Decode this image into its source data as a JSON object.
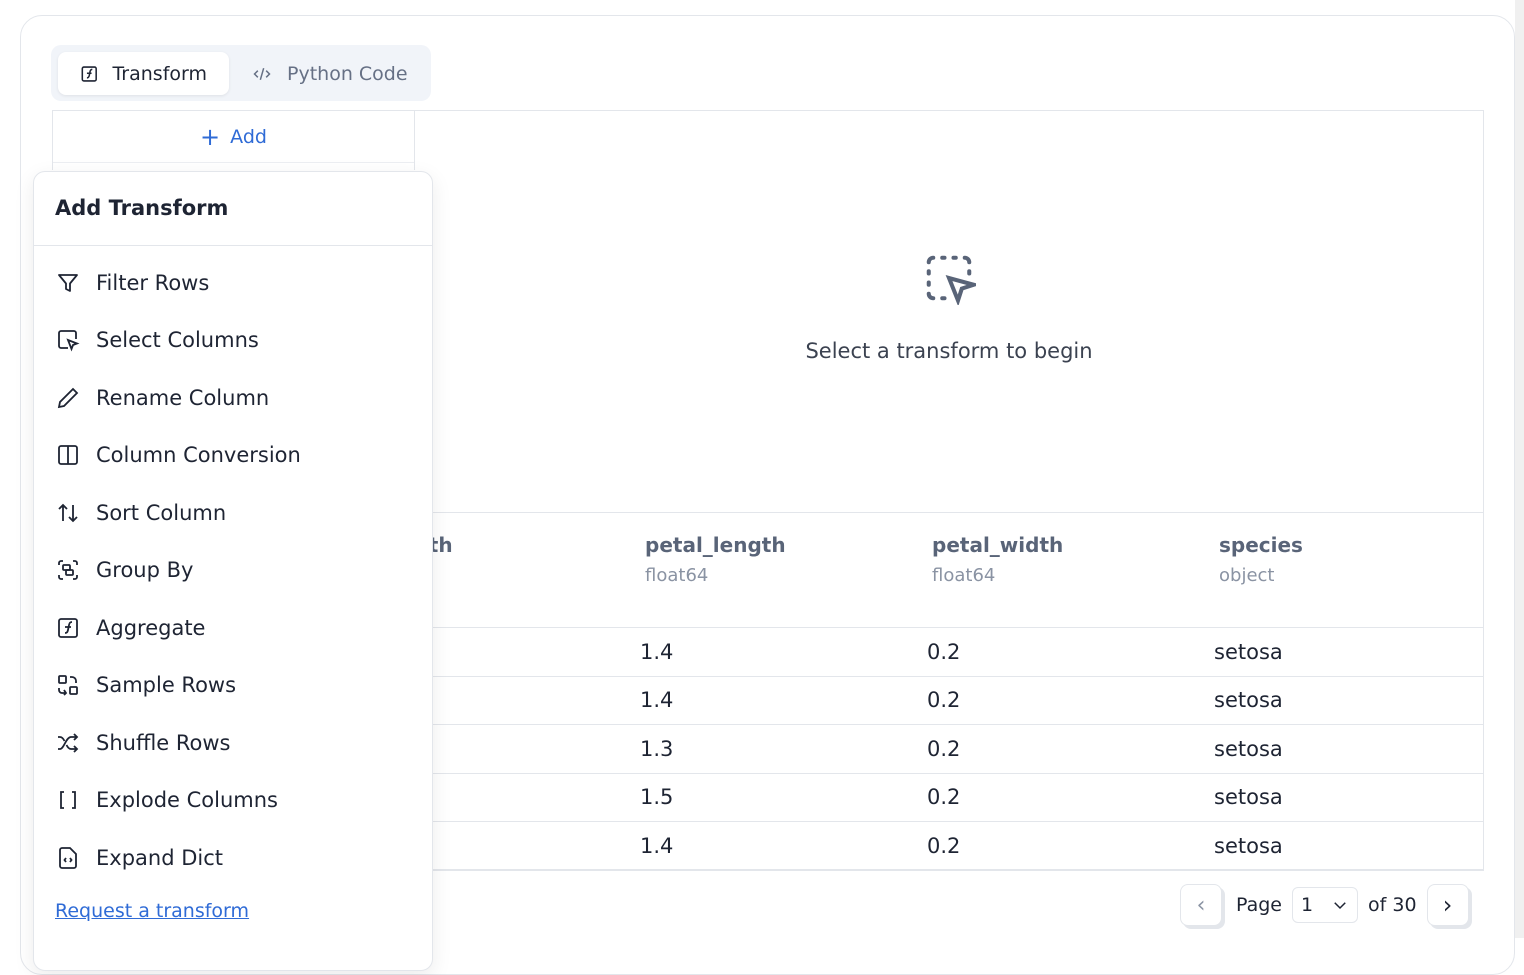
{
  "tabs": [
    {
      "label": "Transform",
      "icon": "function-square-icon",
      "active": true
    },
    {
      "label": "Python Code",
      "icon": "code-icon",
      "active": false
    }
  ],
  "left_panel": {
    "add_label": "Add"
  },
  "empty_state": {
    "text": "Select a transform to begin",
    "icon": "dashed-select-pointer-icon"
  },
  "table": {
    "columns": [
      {
        "name": "sepal_width",
        "type": ""
      },
      {
        "name": "petal_length",
        "type": "float64"
      },
      {
        "name": "petal_width",
        "type": "float64"
      },
      {
        "name": "species",
        "type": "object"
      }
    ],
    "rows": [
      [
        "",
        "1.4",
        "0.2",
        "setosa"
      ],
      [
        "",
        "1.4",
        "0.2",
        "setosa"
      ],
      [
        "",
        "1.3",
        "0.2",
        "setosa"
      ],
      [
        "",
        "1.5",
        "0.2",
        "setosa"
      ],
      [
        "",
        "1.4",
        "0.2",
        "setosa"
      ]
    ]
  },
  "menu": {
    "title": "Add Transform",
    "items": [
      {
        "label": "Filter Rows",
        "icon": "filter-icon"
      },
      {
        "label": "Select Columns",
        "icon": "select-pointer-icon"
      },
      {
        "label": "Rename Column",
        "icon": "pencil-icon"
      },
      {
        "label": "Column Conversion",
        "icon": "columns-icon"
      },
      {
        "label": "Sort Column",
        "icon": "arrow-up-down-icon"
      },
      {
        "label": "Group By",
        "icon": "group-icon"
      },
      {
        "label": "Aggregate",
        "icon": "function-square-icon"
      },
      {
        "label": "Sample Rows",
        "icon": "sample-icon"
      },
      {
        "label": "Shuffle Rows",
        "icon": "shuffle-icon"
      },
      {
        "label": "Explode Columns",
        "icon": "brackets-icon"
      },
      {
        "label": "Expand Dict",
        "icon": "file-json-icon"
      }
    ],
    "request_link": "Request a transform"
  },
  "pagination": {
    "page_label": "Page",
    "current": "1",
    "of_label": "of 30"
  },
  "colors": {
    "accent": "#2f6bd6",
    "border": "#e3e6eb"
  }
}
